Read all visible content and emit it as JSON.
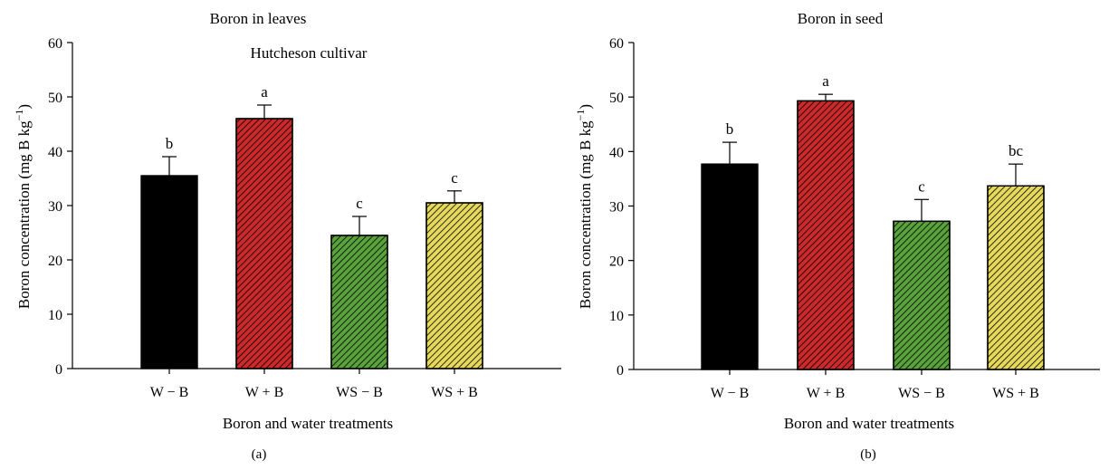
{
  "chart_data": [
    {
      "type": "bar",
      "panel_label": "(a)",
      "title": "Boron in leaves",
      "subtitle": "Hutcheson cultivar",
      "xlabel": "Boron and water treatments",
      "ylabel": "Boron concentration (mg B kg",
      "ylabel_sup": "−1",
      "ylabel_end": ")",
      "ylim": [
        0,
        60
      ],
      "yticks": [
        "0",
        "10",
        "20",
        "30",
        "40",
        "50",
        "60"
      ],
      "categories": [
        "W − B",
        "W + B",
        "WS − B",
        "WS + B"
      ],
      "values": [
        35.5,
        46.0,
        24.5,
        30.5
      ],
      "errors": [
        3.5,
        2.5,
        3.5,
        2.2
      ],
      "letters": [
        "b",
        "a",
        "c",
        "c"
      ],
      "colors": [
        "#000000",
        "#cc2a2a",
        "#5aa23c",
        "#e5d85a"
      ],
      "hatched": [
        false,
        true,
        true,
        true
      ],
      "grid": false
    },
    {
      "type": "bar",
      "panel_label": "(b)",
      "title": "Boron in seed",
      "subtitle": "",
      "xlabel": "Boron and water treatments",
      "ylabel": "Boron concentration (mg B kg",
      "ylabel_sup": "−1",
      "ylabel_end": ")",
      "ylim": [
        0,
        60
      ],
      "yticks": [
        "0",
        "10",
        "20",
        "30",
        "40",
        "50",
        "60"
      ],
      "categories": [
        "W − B",
        "W + B",
        "WS − B",
        "WS + B"
      ],
      "values": [
        37.7,
        49.3,
        27.2,
        33.7
      ],
      "errors": [
        4.0,
        1.2,
        4.0,
        4.0
      ],
      "letters": [
        "b",
        "a",
        "c",
        "bc"
      ],
      "colors": [
        "#000000",
        "#cc2a2a",
        "#5aa23c",
        "#e5d85a"
      ],
      "hatched": [
        false,
        true,
        true,
        true
      ],
      "grid": false
    }
  ]
}
